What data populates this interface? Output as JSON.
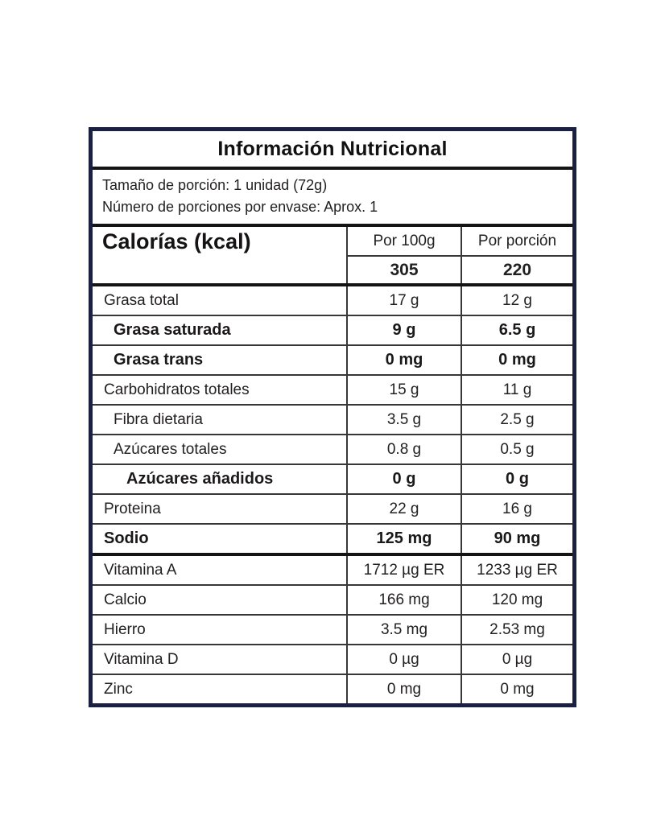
{
  "label": {
    "title": "Información Nutricional",
    "serving": {
      "line1": "Tamaño de porción: 1 unidad (72g)",
      "line2": "Número de porciones por envase: Aprox. 1"
    },
    "calories": {
      "label": "Calorías (kcal)",
      "col_per_100g": "Por 100g",
      "col_per_portion": "Por porción",
      "per_100g": "305",
      "per_portion": "220"
    },
    "rows": [
      {
        "label": "Grasa total",
        "per_100g": "17 g",
        "per_portion": "12 g",
        "bold": false,
        "indent": 1,
        "thick_top": false
      },
      {
        "label": "Grasa saturada",
        "per_100g": "9 g",
        "per_portion": "6.5 g",
        "bold": true,
        "indent": 2,
        "thick_top": false
      },
      {
        "label": "Grasa trans",
        "per_100g": "0 mg",
        "per_portion": "0 mg",
        "bold": true,
        "indent": 2,
        "thick_top": false
      },
      {
        "label": "Carbohidratos totales",
        "per_100g": "15 g",
        "per_portion": "11 g",
        "bold": false,
        "indent": 1,
        "thick_top": false
      },
      {
        "label": "Fibra dietaria",
        "per_100g": "3.5 g",
        "per_portion": "2.5 g",
        "bold": false,
        "indent": 2,
        "thick_top": false
      },
      {
        "label": "Azúcares totales",
        "per_100g": "0.8 g",
        "per_portion": "0.5 g",
        "bold": false,
        "indent": 2,
        "thick_top": false
      },
      {
        "label": "Azúcares añadidos",
        "per_100g": "0 g",
        "per_portion": "0 g",
        "bold": true,
        "indent": 3,
        "thick_top": false
      },
      {
        "label": "Proteina",
        "per_100g": "22 g",
        "per_portion": "16 g",
        "bold": false,
        "indent": 1,
        "thick_top": false
      },
      {
        "label": "Sodio",
        "per_100g": "125 mg",
        "per_portion": "90 mg",
        "bold": true,
        "indent": 1,
        "thick_top": false
      },
      {
        "label": "Vitamina A",
        "per_100g": "1712 µg ER",
        "per_portion": "1233 µg ER",
        "bold": false,
        "indent": 1,
        "thick_top": true
      },
      {
        "label": "Calcio",
        "per_100g": "166 mg",
        "per_portion": "120 mg",
        "bold": false,
        "indent": 1,
        "thick_top": false
      },
      {
        "label": "Hierro",
        "per_100g": "3.5 mg",
        "per_portion": "2.53 mg",
        "bold": false,
        "indent": 1,
        "thick_top": false
      },
      {
        "label": "Vitamina D",
        "per_100g": "0 µg",
        "per_portion": "0 µg",
        "bold": false,
        "indent": 1,
        "thick_top": false
      },
      {
        "label": "Zinc",
        "per_100g": "0 mg",
        "per_portion": "0 mg",
        "bold": false,
        "indent": 1,
        "thick_top": false
      }
    ]
  },
  "colors": {
    "outer_border": "#1c2040",
    "thick_line": "#141414",
    "thin_line": "#39363a",
    "text": "#232021"
  }
}
